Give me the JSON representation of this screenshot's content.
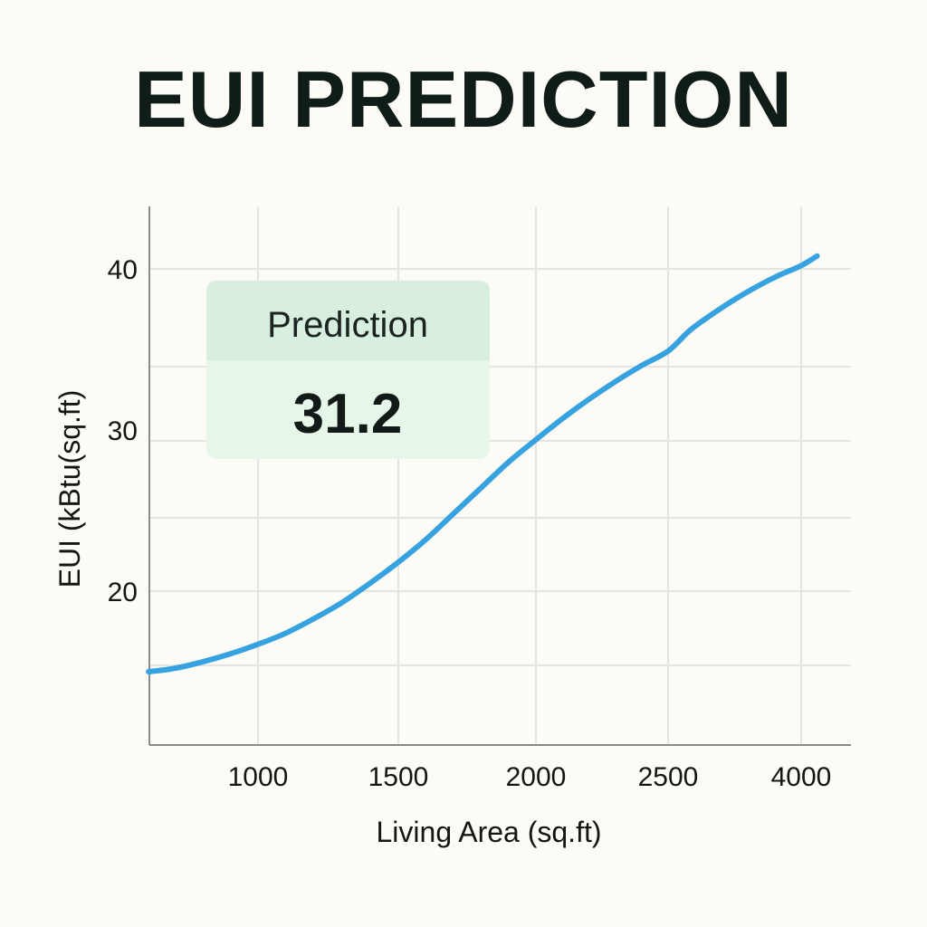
{
  "chart_data": {
    "type": "line",
    "title": "EUI PREDICTION",
    "xlabel": "Living Area (sq.ft)",
    "ylabel": "EUI (kBtu(sq.ft)",
    "x_tick_labels": [
      "1000",
      "1500",
      "2000",
      "2500",
      "4000"
    ],
    "y_ticks": [
      20,
      30,
      40
    ],
    "grid": true,
    "series": [
      {
        "color": "#36a2e0",
        "x": [
          610,
          700,
          800,
          900,
          1000,
          1100,
          1200,
          1300,
          1400,
          1500,
          1600,
          1700,
          1800,
          1900,
          2000,
          2100,
          2200,
          2300,
          2400,
          2500,
          2750,
          3000,
          3250,
          3500,
          3750,
          4000,
          4180
        ],
        "y": [
          15.0,
          15.2,
          15.6,
          16.1,
          16.7,
          17.4,
          18.3,
          19.3,
          20.5,
          21.8,
          23.2,
          24.8,
          26.4,
          28.0,
          29.4,
          30.7,
          31.9,
          33.0,
          34.0,
          34.9,
          36.2,
          37.2,
          38.1,
          38.9,
          39.6,
          40.2,
          40.8
        ]
      }
    ],
    "annotation": {
      "title": "Prediction",
      "value": "31.2"
    }
  },
  "colors": {
    "background": "#fcfbf6",
    "grid": "#e4e4e0",
    "axis": "#8a8a8a",
    "line": "#36a2e0",
    "callout_header": "#d8efdf",
    "callout_body": "#e6f6e9"
  }
}
